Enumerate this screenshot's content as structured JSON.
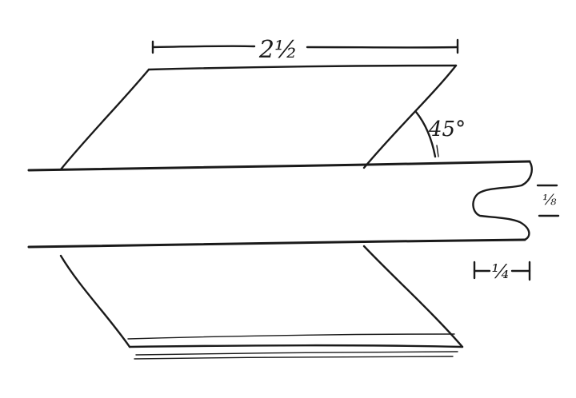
{
  "dimensions": {
    "fin_width": "2½",
    "sweep_angle": "45°",
    "notch_depth": "⅛",
    "notch_width": "¼"
  },
  "colors": {
    "ink": "#1a1a1a",
    "paper": "#ffffff"
  }
}
